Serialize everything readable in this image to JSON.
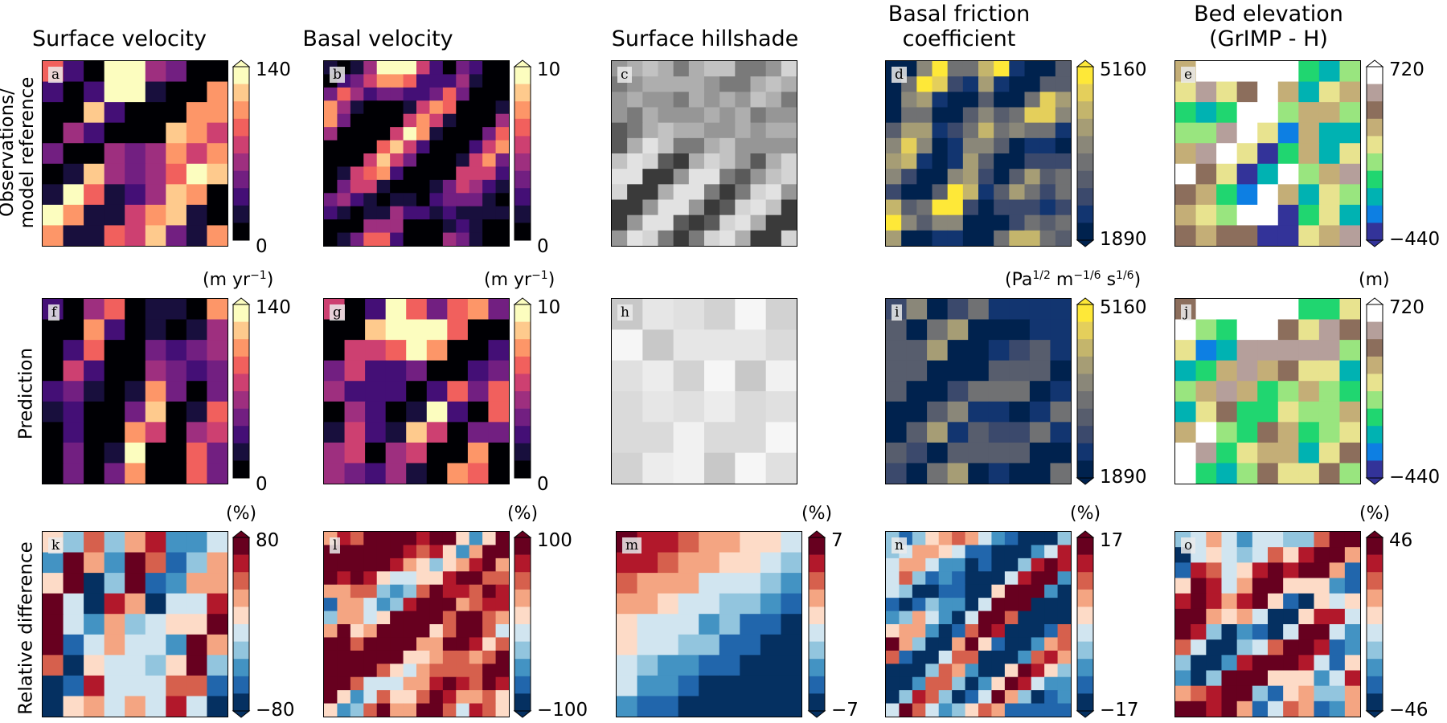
{
  "columns": [
    {
      "title": "Surface velocity"
    },
    {
      "title": "Basal velocity"
    },
    {
      "title": "Surface hillshade"
    },
    {
      "title": "Basal friction\ncoefficient"
    },
    {
      "title": "Bed elevation\n(GrIMP - H)"
    }
  ],
  "rows": [
    {
      "label": "Observations/\nmodel reference"
    },
    {
      "label": "Prediction"
    },
    {
      "label": "Relative difference"
    }
  ],
  "panels": [
    "a",
    "b",
    "c",
    "d",
    "e",
    "f",
    "g",
    "h",
    "i",
    "j",
    "k",
    "l",
    "m",
    "n",
    "o"
  ],
  "colorbars": {
    "surface_velocity": {
      "max": "140",
      "min": "0"
    },
    "basal_velocity": {
      "max": "10",
      "min": "0"
    },
    "friction": {
      "max": "5160",
      "min": "1890"
    },
    "bed": {
      "max": "720",
      "min": "−440"
    },
    "diff_surface_velocity": {
      "max": "80",
      "min": "−80"
    },
    "diff_basal_velocity": {
      "max": "100",
      "min": "−100"
    },
    "diff_hillshade": {
      "max": "7",
      "min": "−7"
    },
    "diff_friction": {
      "max": "17",
      "min": "−17"
    },
    "diff_bed": {
      "max": "46",
      "min": "−46"
    }
  },
  "units": {
    "velocity_base": "(m yr",
    "velocity_exp": "−1",
    "velocity_close": ")",
    "friction_a": "(Pa",
    "friction_a_exp": "1/2",
    "friction_b": " m",
    "friction_b_exp": "−1/6",
    "friction_c": " s",
    "friction_c_exp": "1/6",
    "friction_close": ")",
    "bed": "(m)",
    "percent": "(%)"
  },
  "colors": {
    "magma": [
      "#000004",
      "#180f3d",
      "#440f76",
      "#721f81",
      "#9e2f7f",
      "#cd4071",
      "#f1605d",
      "#fd9668",
      "#feca8d",
      "#fcfdbf"
    ],
    "cividis": [
      "#00224e",
      "#123570",
      "#3b496c",
      "#575d6d",
      "#707173",
      "#8a8779",
      "#a69d75",
      "#c4b56c",
      "#e4cf5b",
      "#fee838"
    ],
    "terrain": [
      "#333399",
      "#0d7fe3",
      "#00b2b2",
      "#20d670",
      "#99e57f",
      "#e8e38f",
      "#c4ae77",
      "#8c6e5c",
      "#b59f9b",
      "#ffffff"
    ],
    "rdbu": [
      "#053061",
      "#2166ac",
      "#4393c3",
      "#92c5de",
      "#d1e5f0",
      "#fddbc7",
      "#f4a582",
      "#d6604d",
      "#b2182b",
      "#67001f"
    ]
  }
}
